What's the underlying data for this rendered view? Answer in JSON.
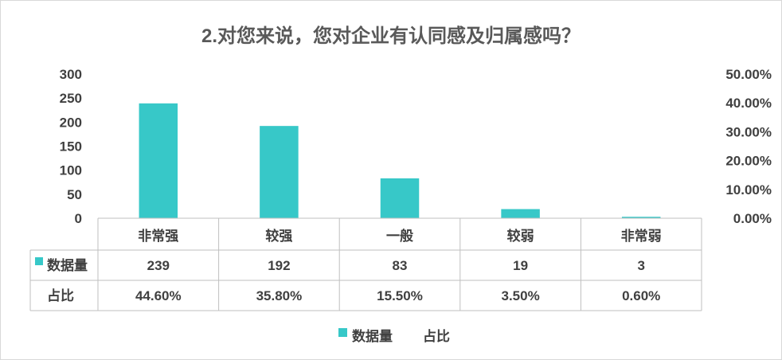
{
  "chart_data": {
    "type": "bar",
    "title": "2.对您来说，您对企业有认同感及归属感吗？",
    "categories": [
      "非常强",
      "较强",
      "一般",
      "较弱",
      "非常弱"
    ],
    "series": [
      {
        "name": "数据量",
        "values": [
          239,
          192,
          83,
          19,
          3
        ],
        "color": "#37c8c8",
        "axis": "left"
      },
      {
        "name": "占比",
        "values": [
          44.6,
          35.8,
          15.5,
          3.5,
          0.6
        ],
        "display": [
          "44.60%",
          "35.80%",
          "15.50%",
          "3.50%",
          "0.60%"
        ],
        "axis": "right"
      }
    ],
    "left_axis": {
      "ylim": [
        0,
        300
      ],
      "ticks": [
        "0",
        "50",
        "100",
        "150",
        "200",
        "250",
        "300"
      ]
    },
    "right_axis": {
      "ylim": [
        0,
        50
      ],
      "ticks": [
        "0.00%",
        "10.00%",
        "20.00%",
        "30.00%",
        "40.00%",
        "50.00%"
      ]
    },
    "data_table": true,
    "legend_position": "bottom",
    "grid": false
  }
}
